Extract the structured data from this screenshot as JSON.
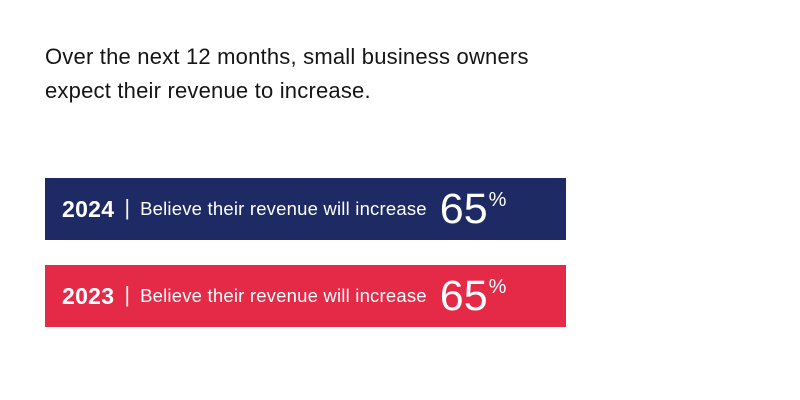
{
  "title": {
    "line1": "Over the next 12 months, small business owners",
    "line2": "expect their revenue to increase."
  },
  "colors": {
    "navy": "#1e2a63",
    "red": "#e52a47",
    "title_text": "#151515",
    "bar_text": "#ffffff",
    "background": "#ffffff"
  },
  "chart_data": {
    "type": "bar",
    "title": "Over the next 12 months, small business owners expect their revenue to increase.",
    "categories": [
      "2024",
      "2023"
    ],
    "values": [
      65,
      65
    ],
    "unit": "%",
    "series_label": "Believe their revenue will increase",
    "orientation": "horizontal",
    "bars": [
      {
        "year": "2024",
        "separator": "|",
        "label": "Believe their revenue will increase",
        "value": "65",
        "unit": "%",
        "color": "#1e2a63"
      },
      {
        "year": "2023",
        "separator": "|",
        "label": "Believe their revenue will increase",
        "value": "65",
        "unit": "%",
        "color": "#e52a47"
      }
    ]
  }
}
